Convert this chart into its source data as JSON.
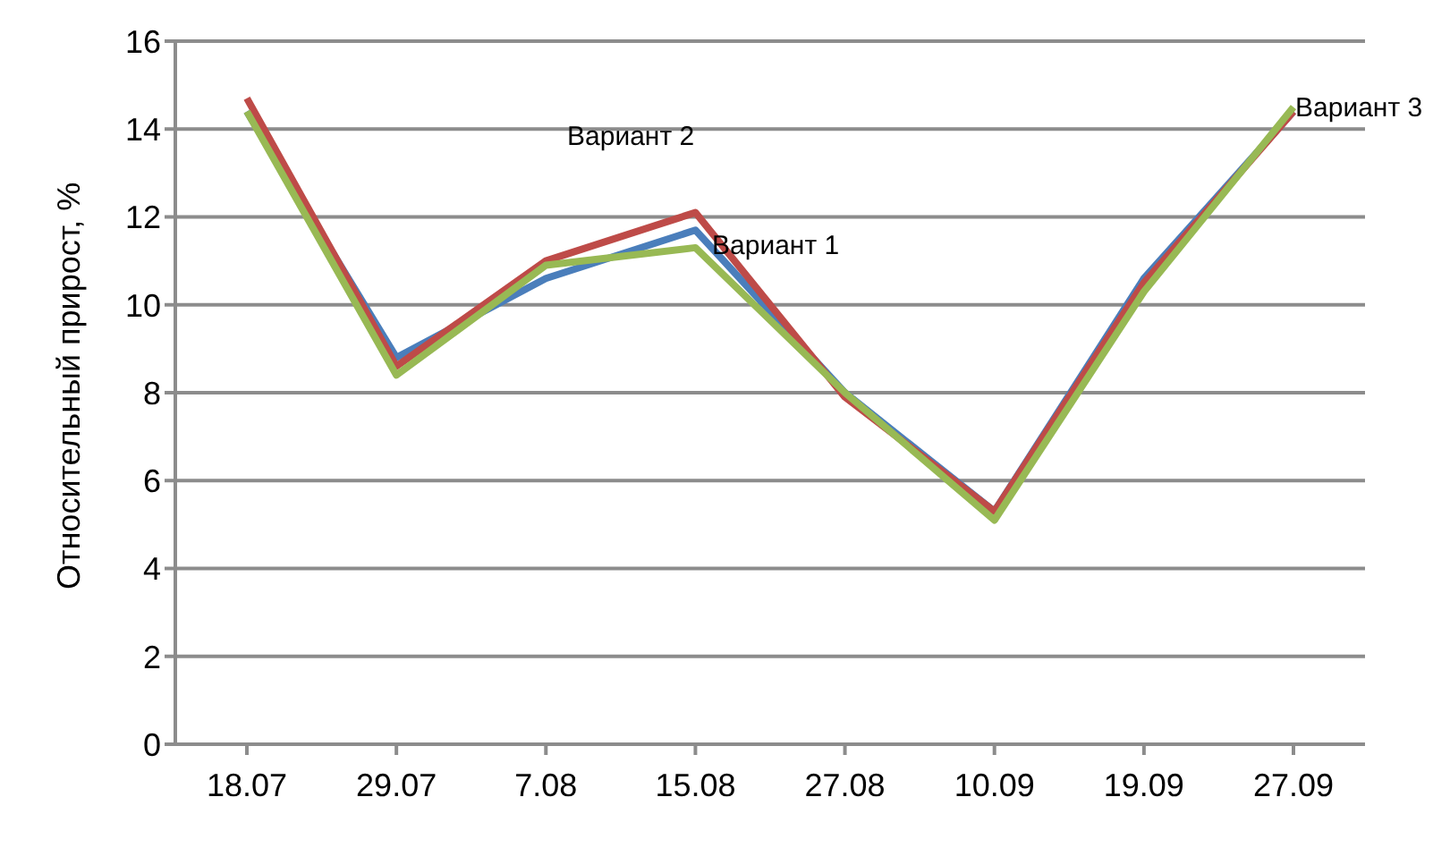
{
  "chart_data": {
    "type": "line",
    "ylabel": "Относительный прирост, %",
    "categories": [
      "18.07",
      "29.07",
      "7.08",
      "15.08",
      "27.08",
      "10.09",
      "19.09",
      "27.09"
    ],
    "series": [
      {
        "color": "#4a7ebb",
        "values": [
          14.4,
          8.8,
          10.6,
          11.7,
          8.0,
          5.3,
          10.6,
          14.4
        ]
      },
      {
        "color": "#be4b48",
        "values": [
          14.7,
          8.6,
          11.0,
          12.1,
          7.9,
          5.3,
          10.5,
          14.4
        ]
      },
      {
        "color": "#98b954",
        "values": [
          14.4,
          8.4,
          10.9,
          11.3,
          8.0,
          5.1,
          10.3,
          14.5
        ]
      }
    ],
    "ylim": [
      0,
      16
    ],
    "yticks": [
      0,
      2,
      4,
      6,
      8,
      10,
      12,
      14,
      16
    ],
    "grid": "y",
    "marker": "none",
    "line_style": "solid",
    "legend": false,
    "annotations": [
      "Вариант 2",
      "Вариант 1",
      "Вариант 3"
    ]
  }
}
